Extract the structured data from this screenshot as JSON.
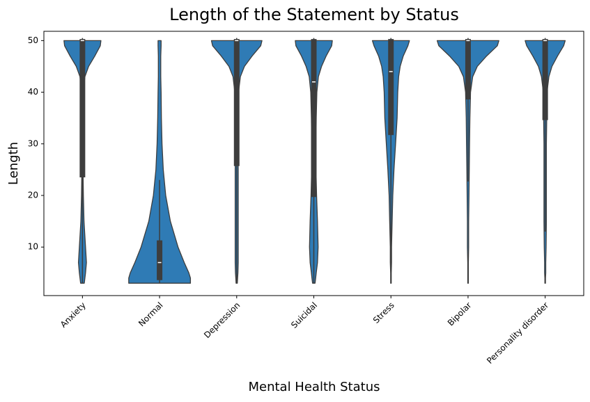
{
  "chart_data": {
    "type": "violin",
    "title": "Length of the Statement by Status",
    "x_label": "Mental Health Status",
    "y_label": "Length",
    "categories": [
      "Anxiety",
      "Normal",
      "Depression",
      "Suicidal",
      "Stress",
      "Bipolar",
      "Personality disorder"
    ],
    "color": "#2f7bb5",
    "edge_color": "#3d3d3d",
    "ylim": [
      0.6,
      51.8
    ],
    "yticks": [
      10,
      20,
      30,
      40,
      50
    ],
    "density_y": [
      3,
      4,
      5,
      7,
      10,
      15,
      20,
      25,
      30,
      35,
      40,
      43,
      45,
      47,
      49,
      50
    ],
    "density": [
      [
        0.06,
        0.08,
        0.1,
        0.13,
        0.1,
        0.05,
        0.03,
        0.02,
        0.02,
        0.02,
        0.03,
        0.08,
        0.2,
        0.4,
        0.58,
        0.6
      ],
      [
        1.0,
        1.0,
        0.95,
        0.8,
        0.6,
        0.35,
        0.2,
        0.12,
        0.08,
        0.06,
        0.05,
        0.04,
        0.04,
        0.04,
        0.05,
        0.05
      ],
      [
        0.02,
        0.03,
        0.04,
        0.05,
        0.05,
        0.05,
        0.05,
        0.05,
        0.04,
        0.04,
        0.06,
        0.12,
        0.25,
        0.5,
        0.78,
        0.82
      ],
      [
        0.04,
        0.06,
        0.08,
        0.12,
        0.14,
        0.12,
        0.09,
        0.07,
        0.07,
        0.08,
        0.1,
        0.15,
        0.25,
        0.4,
        0.58,
        0.6
      ],
      [
        0.01,
        0.01,
        0.01,
        0.02,
        0.02,
        0.04,
        0.06,
        0.1,
        0.15,
        0.2,
        0.22,
        0.25,
        0.3,
        0.4,
        0.55,
        0.6
      ],
      [
        0.01,
        0.01,
        0.01,
        0.01,
        0.02,
        0.02,
        0.03,
        0.04,
        0.05,
        0.06,
        0.08,
        0.15,
        0.3,
        0.6,
        0.95,
        1.0
      ],
      [
        0.01,
        0.01,
        0.02,
        0.02,
        0.03,
        0.04,
        0.04,
        0.04,
        0.04,
        0.05,
        0.06,
        0.12,
        0.22,
        0.4,
        0.6,
        0.65
      ]
    ],
    "q1": [
      23.5,
      3.6,
      25.7,
      19.7,
      31.7,
      38.6,
      34.6
    ],
    "median": [
      50,
      7,
      50,
      42,
      44,
      50,
      50
    ],
    "q3": [
      50.3,
      11.3,
      50.3,
      50.3,
      50.3,
      50.3,
      50.3
    ],
    "whisker_low": [
      3,
      3,
      3,
      3,
      5,
      22.7,
      13
    ],
    "whisker_high": [
      50.5,
      23,
      50.5,
      50.5,
      50.5,
      50.5,
      50.5
    ]
  }
}
